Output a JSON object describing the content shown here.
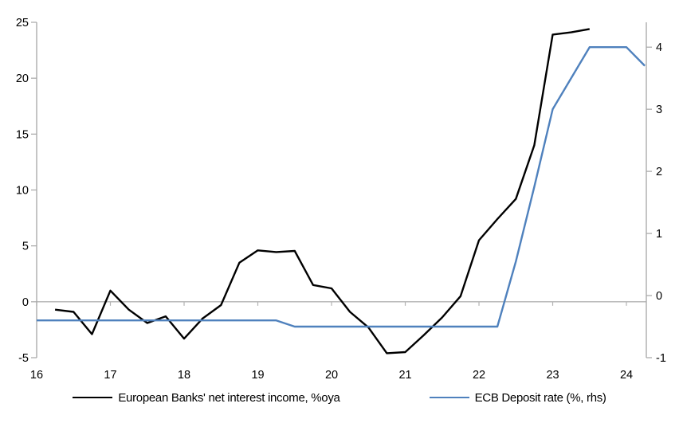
{
  "chart_data": {
    "type": "line",
    "title": "",
    "x_axis": {
      "tick_values": [
        16,
        17,
        18,
        19,
        20,
        21,
        22,
        23,
        24
      ],
      "range": [
        16,
        24.27
      ],
      "unit": "year (2016-2024)"
    },
    "left_axis": {
      "tick_values": [
        -5,
        0,
        5,
        10,
        15,
        20,
        25
      ],
      "range": [
        -5,
        25
      ]
    },
    "right_axis": {
      "tick_values": [
        -1,
        0,
        1,
        2,
        3,
        4
      ],
      "range": [
        -1,
        4.4
      ]
    },
    "grid": "zero-line-only",
    "legend_position": "bottom",
    "series": [
      {
        "name": "European Banks' net interest income, %oya",
        "axis": "left",
        "color": "#000000",
        "x": [
          16.25,
          16.5,
          16.75,
          17.0,
          17.25,
          17.5,
          17.75,
          18.0,
          18.25,
          18.5,
          18.75,
          19.0,
          19.25,
          19.5,
          19.75,
          20.0,
          20.25,
          20.5,
          20.75,
          21.0,
          21.25,
          21.5,
          21.75,
          22.0,
          22.25,
          22.5,
          22.75,
          23.0,
          23.25,
          23.5
        ],
        "values": [
          -0.7,
          -0.9,
          -2.9,
          1.0,
          -0.7,
          -1.9,
          -1.3,
          -3.3,
          -1.5,
          -0.3,
          3.5,
          4.6,
          4.45,
          4.55,
          1.5,
          1.2,
          -0.9,
          -2.3,
          -4.6,
          -4.5,
          -3.0,
          -1.4,
          0.5,
          5.5,
          7.4,
          9.2,
          14.0,
          23.9,
          24.1,
          24.4
        ]
      },
      {
        "name": "ECB Deposit rate (%, rhs)",
        "axis": "right",
        "color": "#4F81BD",
        "x": [
          16.0,
          16.25,
          16.5,
          16.75,
          17.0,
          17.25,
          17.5,
          17.75,
          18.0,
          18.25,
          18.5,
          18.75,
          19.0,
          19.25,
          19.5,
          19.75,
          20.0,
          20.25,
          20.5,
          20.75,
          21.0,
          21.25,
          21.5,
          21.75,
          22.0,
          22.25,
          22.5,
          22.75,
          23.0,
          23.25,
          23.5,
          23.75,
          24.0,
          24.25
        ],
        "values": [
          -0.4,
          -0.4,
          -0.4,
          -0.4,
          -0.4,
          -0.4,
          -0.4,
          -0.4,
          -0.4,
          -0.4,
          -0.4,
          -0.4,
          -0.4,
          -0.4,
          -0.5,
          -0.5,
          -0.5,
          -0.5,
          -0.5,
          -0.5,
          -0.5,
          -0.5,
          -0.5,
          -0.5,
          -0.5,
          -0.5,
          0.55,
          1.75,
          3.0,
          3.5,
          4.0,
          4.0,
          4.0,
          3.7
        ]
      }
    ],
    "style": {
      "axis_color": "#A6A6A6",
      "zero_line_color": "#B3B3B3",
      "text_color": "#000000",
      "background": "#FFFFFF",
      "series_stroke_width": 2.4
    }
  }
}
